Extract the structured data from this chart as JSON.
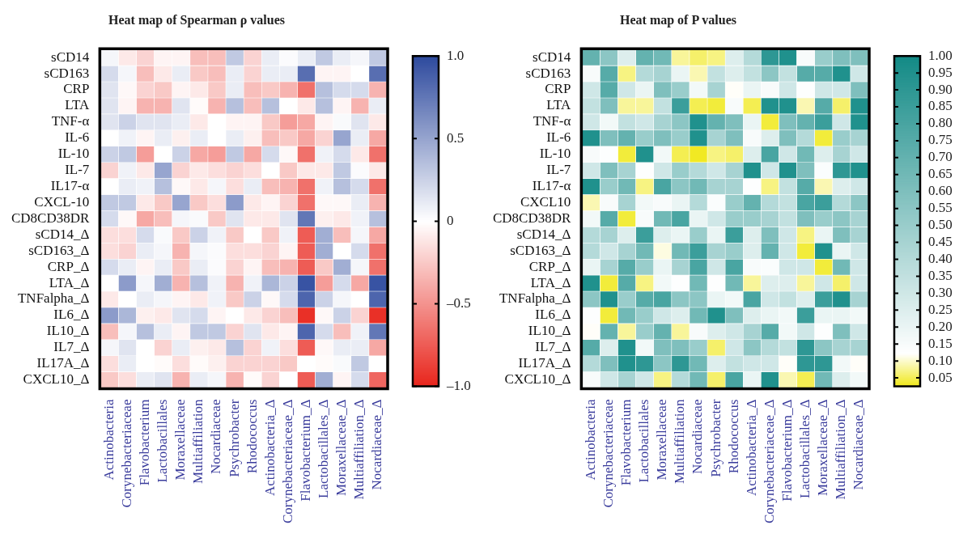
{
  "chart_data": [
    {
      "type": "heatmap",
      "title": "Heat map of Spearman ρ values",
      "categories": [
        "Actinobacteria",
        "Corynebacteriaceae",
        "Flavobacterium",
        "Lactobacillales",
        "Moraxellaceae",
        "Multiaffiliation",
        "Nocardiaceae",
        "Psychrobacter",
        "Rhodococcus",
        "Actinobacteria_Δ",
        "Corynebacteriaceae_Δ",
        "Flavobacterium_Δ",
        "Lactobacillales_Δ",
        "Moraxellaceae_Δ",
        "Multiaffiliation_Δ",
        "Nocardiaceae_Δ"
      ],
      "y_categories": [
        "sCD14",
        "sCD163",
        "CRP",
        "LTA",
        "TNF-α",
        "IL-6",
        "IL-10",
        "IL-7",
        "IL17-α",
        "CXCL-10",
        "CD8CD38DR",
        "sCD14_Δ",
        "sCD163_Δ",
        "CRP_Δ",
        "LTA_Δ",
        "TNFalpha_Δ",
        "IL6_Δ",
        "IL10_Δ",
        "IL7_Δ",
        "IL17A_Δ",
        "CXCL10_Δ"
      ],
      "cells": [
        [
          0.05,
          -0.1,
          -0.2,
          -0.05,
          -0.05,
          -0.3,
          -0.3,
          0.3,
          -0.2,
          0.1,
          0.02,
          0.1,
          0.3,
          0.1,
          0.05,
          0.3
        ],
        [
          0.2,
          0.05,
          -0.3,
          -0.1,
          0.1,
          -0.25,
          -0.3,
          0.1,
          -0.2,
          0.1,
          0.1,
          0.8,
          -0.05,
          -0.05,
          0,
          0.8
        ],
        [
          0.15,
          -0.03,
          -0.2,
          -0.25,
          -0.05,
          -0.1,
          -0.25,
          0.1,
          -0.3,
          -0.25,
          -0.35,
          -0.65,
          0.35,
          0.2,
          0.2,
          -0.35
        ],
        [
          0.15,
          -0.05,
          -0.35,
          -0.35,
          0.15,
          -0.02,
          -0.35,
          0.35,
          -0.3,
          0.35,
          0,
          -0.1,
          0.35,
          -0.05,
          -0.35,
          0.1
        ],
        [
          0.15,
          0.25,
          0.15,
          0.15,
          0.1,
          -0.1,
          0,
          -0.05,
          -0.05,
          -0.25,
          -0.45,
          -0.4,
          -0.05,
          0.03,
          0.15,
          -0.1
        ],
        [
          0,
          0.07,
          -0.05,
          0.1,
          -0.07,
          0.1,
          0,
          0.1,
          -0.07,
          -0.3,
          -0.25,
          -0.4,
          -0.2,
          0.5,
          0.1,
          -0.4
        ],
        [
          0.25,
          0.3,
          -0.45,
          0,
          0.25,
          -0.4,
          -0.45,
          0.3,
          -0.4,
          0.2,
          -0.03,
          -0.65,
          0.07,
          0.2,
          -0.1,
          -0.65
        ],
        [
          -0.2,
          0.07,
          -0.1,
          0.5,
          -0.2,
          -0.1,
          -0.15,
          -0.2,
          -0.15,
          0,
          -0.25,
          -0.1,
          -0.1,
          0.3,
          0.02,
          -0.1
        ],
        [
          0,
          0.1,
          0.07,
          0.35,
          -0.03,
          -0.1,
          0.05,
          -0.15,
          0.1,
          -0.3,
          -0.35,
          -0.65,
          0.07,
          0.35,
          0.2,
          -0.65
        ],
        [
          0.3,
          0.3,
          -0.1,
          -0.25,
          0.5,
          -0.25,
          -0.15,
          0.55,
          -0.1,
          -0.05,
          -0.2,
          -0.65,
          -0.03,
          -0.03,
          0.1,
          -0.35
        ],
        [
          0.2,
          -0.03,
          -0.4,
          -0.3,
          0.05,
          0.03,
          -0.25,
          0.15,
          -0.1,
          -0.1,
          0.15,
          0.75,
          -0.07,
          -0.1,
          0.07,
          0.35
        ],
        [
          -0.15,
          -0.15,
          0.2,
          0.03,
          -0.25,
          0.25,
          0.07,
          -0.25,
          0,
          -0.25,
          0.07,
          -0.75,
          0.45,
          -0.3,
          0.05,
          -0.4
        ],
        [
          -0.15,
          -0.2,
          0.1,
          0.05,
          -0.35,
          0.05,
          0.02,
          -0.15,
          -0.15,
          -0.2,
          -0.05,
          -0.75,
          0.45,
          0,
          0.2,
          -0.65
        ],
        [
          0.2,
          0.1,
          -0.05,
          0.1,
          -0.25,
          0.1,
          0.02,
          -0.2,
          -0.05,
          -0.3,
          -0.35,
          -0.75,
          -0.25,
          0.45,
          0.05,
          -0.65
        ],
        [
          0,
          0.55,
          0.05,
          0.45,
          -0.35,
          0.35,
          0.07,
          -0.35,
          0.07,
          0.4,
          0.25,
          0.95,
          -0.45,
          0.2,
          -0.4,
          0.95
        ],
        [
          -0.1,
          0,
          0.1,
          0.05,
          -0.05,
          -0.1,
          0.07,
          -0.25,
          0.25,
          -0.03,
          0.2,
          0.85,
          0.25,
          0.05,
          0,
          0.85
        ],
        [
          0.55,
          0.4,
          -0.07,
          -0.1,
          0.15,
          0.2,
          -0.05,
          0,
          -0.1,
          -0.2,
          -0.3,
          -0.95,
          -0.03,
          0.25,
          -0.2,
          -0.95
        ],
        [
          -0.3,
          0.05,
          0.35,
          0.1,
          -0.05,
          0.3,
          0.3,
          -0.2,
          0.15,
          -0.1,
          -0.05,
          0.85,
          0.2,
          -0.3,
          0.07,
          0.75
        ],
        [
          0.05,
          0.15,
          0,
          -0.2,
          0.1,
          -0.07,
          -0.1,
          0.35,
          -0.2,
          0.07,
          -0.15,
          -0.75,
          -0.03,
          0.1,
          0.1,
          -0.4
        ],
        [
          -0.15,
          0.1,
          0,
          -0.02,
          -0.15,
          -0.02,
          -0.07,
          -0.2,
          -0.2,
          -0.2,
          -0.25,
          0,
          -0.02,
          0.03,
          0.3,
          0
        ],
        [
          -0.25,
          -0.15,
          0.1,
          0.15,
          -0.35,
          0.1,
          0.05,
          -0.35,
          -0.02,
          -0.2,
          0,
          -0.75,
          0.45,
          -0.05,
          0.2,
          -0.7
        ]
      ],
      "clim": [
        -1,
        1
      ],
      "cticks": [
        {
          "value": 1,
          "label": "1.0"
        },
        {
          "value": 0.5,
          "label": "0.5"
        },
        0,
        {
          "value": -0.5,
          "label": "–0.5"
        },
        {
          "value": -1,
          "label": "–1.0"
        }
      ]
    },
    {
      "type": "heatmap",
      "title": "Heat map of P values",
      "categories": [
        "Actinobacteria",
        "Corynebacteriaceae",
        "Flavobacterium",
        "Lactobacillales",
        "Moraxellaceae",
        "Multiaffiliation",
        "Nocardiaceae",
        "Psychrobacter",
        "Rhodococcus",
        "Actinobacteria_Δ",
        "Corynebacteriaceae_Δ",
        "Flavobacterium_Δ",
        "Lactobacillales_Δ",
        "Moraxellaceae_Δ",
        "Multiaffiliation_Δ",
        "Nocardiaceae_Δ"
      ],
      "y_categories": [
        "sCD14",
        "sCD163",
        "CRP",
        "LTA",
        "TNF-α",
        "IL-6",
        "IL-10",
        "IL-7",
        "IL17-α",
        "CXCL10",
        "CD8CD38DR",
        "sCD14_Δ",
        "sCD163_Δ",
        "CRP_Δ",
        "LTA_Δ",
        "TNFalpha_Δ",
        "IL6_Δ",
        "IL10_Δ",
        "IL7_Δ",
        "IL17A_Δ",
        "CXCL10_Δ"
      ],
      "cells": [
        [
          0.7,
          0.55,
          0.25,
          0.7,
          0.65,
          0.08,
          0.06,
          0.07,
          0.25,
          0.4,
          0.9,
          0.95,
          0.15,
          0.5,
          0.6,
          0.6
        ],
        [
          0.15,
          0.75,
          0.07,
          0.4,
          0.45,
          0.2,
          0.09,
          0.35,
          0.25,
          0.35,
          0.55,
          0.35,
          0.75,
          0.75,
          0.95,
          0.3
        ],
        [
          0.3,
          0.75,
          0.3,
          0.2,
          0.6,
          0.5,
          0.17,
          0.45,
          0.12,
          0.2,
          0.15,
          0.3,
          0.13,
          0.3,
          0.3,
          0.6
        ],
        [
          0.35,
          0.6,
          0.08,
          0.08,
          0.35,
          0.85,
          0.05,
          0.04,
          0.15,
          0.05,
          0.95,
          0.95,
          0.09,
          0.75,
          0.06,
          0.95
        ],
        [
          0.3,
          0.17,
          0.35,
          0.3,
          0.45,
          0.55,
          0.95,
          0.7,
          0.6,
          0.2,
          0.04,
          0.6,
          0.7,
          0.85,
          0.3,
          0.95
        ],
        [
          0.95,
          0.6,
          0.7,
          0.5,
          0.6,
          0.5,
          0.95,
          0.45,
          0.6,
          0.15,
          0.25,
          0.6,
          0.4,
          0.04,
          0.5,
          0.45
        ],
        [
          0.15,
          0.13,
          0.04,
          0.95,
          0.17,
          0.05,
          0.03,
          0.07,
          0.06,
          0.25,
          0.8,
          0.3,
          0.65,
          0.25,
          0.45,
          0.3
        ],
        [
          0.3,
          0.6,
          0.45,
          0.13,
          0.3,
          0.5,
          0.4,
          0.3,
          0.45,
          0.95,
          0.3,
          0.95,
          0.6,
          0.14,
          0.9,
          0.95
        ],
        [
          0.95,
          0.5,
          0.65,
          0.07,
          0.8,
          0.55,
          0.65,
          0.45,
          0.45,
          0.13,
          0.07,
          0.35,
          0.75,
          0.09,
          0.25,
          0.3
        ],
        [
          0.09,
          0.15,
          0.45,
          0.17,
          0.15,
          0.2,
          0.4,
          0.14,
          0.5,
          0.7,
          0.4,
          0.35,
          0.8,
          0.85,
          0.4,
          0.55
        ],
        [
          0.17,
          0.75,
          0.04,
          0.15,
          0.65,
          0.8,
          0.2,
          0.3,
          0.5,
          0.5,
          0.45,
          0.35,
          0.6,
          0.5,
          0.55,
          0.45
        ],
        [
          0.4,
          0.45,
          0.25,
          0.85,
          0.25,
          0.2,
          0.5,
          0.2,
          0.85,
          0.25,
          0.6,
          0.3,
          0.07,
          0.2,
          0.6,
          0.45
        ],
        [
          0.4,
          0.3,
          0.45,
          0.65,
          0.11,
          0.65,
          0.85,
          0.45,
          0.5,
          0.25,
          0.7,
          0.3,
          0.04,
          0.95,
          0.2,
          0.3
        ],
        [
          0.2,
          0.45,
          0.75,
          0.5,
          0.2,
          0.45,
          0.8,
          0.3,
          0.8,
          0.15,
          0.14,
          0.3,
          0.3,
          0.04,
          0.65,
          0.3
        ],
        [
          0.95,
          0.04,
          0.75,
          0.07,
          0.17,
          0.13,
          0.65,
          0.13,
          0.65,
          0.08,
          0.25,
          0.25,
          0.08,
          0.3,
          0.06,
          0.3
        ],
        [
          0.55,
          0.95,
          0.5,
          0.75,
          0.8,
          0.55,
          0.55,
          0.2,
          0.17,
          0.8,
          0.3,
          0.35,
          0.25,
          0.85,
          0.95,
          0.45
        ],
        [
          0.13,
          0.04,
          0.65,
          0.5,
          0.3,
          0.25,
          0.65,
          0.95,
          0.6,
          0.25,
          0.2,
          0.17,
          0.85,
          0.2,
          0.2,
          0.17
        ],
        [
          0.12,
          0.7,
          0.08,
          0.5,
          0.7,
          0.08,
          0.15,
          0.25,
          0.3,
          0.45,
          0.75,
          0.17,
          0.3,
          0.13,
          0.6,
          0.3
        ],
        [
          0.75,
          0.25,
          0.95,
          0.17,
          0.6,
          0.6,
          0.5,
          0.06,
          0.3,
          0.55,
          0.4,
          0.35,
          0.9,
          0.55,
          0.45,
          0.45
        ],
        [
          0.4,
          0.6,
          0.95,
          0.9,
          0.55,
          0.9,
          0.65,
          0.25,
          0.35,
          0.3,
          0.3,
          0.12,
          0.9,
          0.9,
          0.17,
          0.12
        ],
        [
          0.15,
          0.3,
          0.45,
          0.3,
          0.07,
          0.4,
          0.65,
          0.06,
          0.8,
          0.2,
          0.95,
          0.09,
          0.05,
          0.65,
          0.25,
          0.17
        ]
      ],
      "clim": [
        0.025,
        1
      ],
      "cticks": [
        {
          "value": 1,
          "label": "1.00"
        },
        {
          "value": 0.95,
          "label": "0.95"
        },
        {
          "value": 0.9,
          "label": "0.90"
        },
        {
          "value": 0.85,
          "label": "0.85"
        },
        {
          "value": 0.8,
          "label": "0.80"
        },
        {
          "value": 0.75,
          "label": "0.75"
        },
        {
          "value": 0.7,
          "label": "0.70"
        },
        {
          "value": 0.65,
          "label": "0.65"
        },
        {
          "value": 0.6,
          "label": "0.60"
        },
        {
          "value": 0.55,
          "label": "0.55"
        },
        {
          "value": 0.5,
          "label": "0.50"
        },
        {
          "value": 0.45,
          "label": "0.45"
        },
        {
          "value": 0.4,
          "label": "0.40"
        },
        {
          "value": 0.35,
          "label": "0.35"
        },
        {
          "value": 0.3,
          "label": "0.30"
        },
        {
          "value": 0.25,
          "label": "0.25"
        },
        {
          "value": 0.2,
          "label": "0.20"
        },
        {
          "value": 0.15,
          "label": "0.15"
        },
        {
          "value": 0.1,
          "label": "0.10"
        },
        {
          "value": 0.05,
          "label": "0.05"
        }
      ]
    }
  ]
}
